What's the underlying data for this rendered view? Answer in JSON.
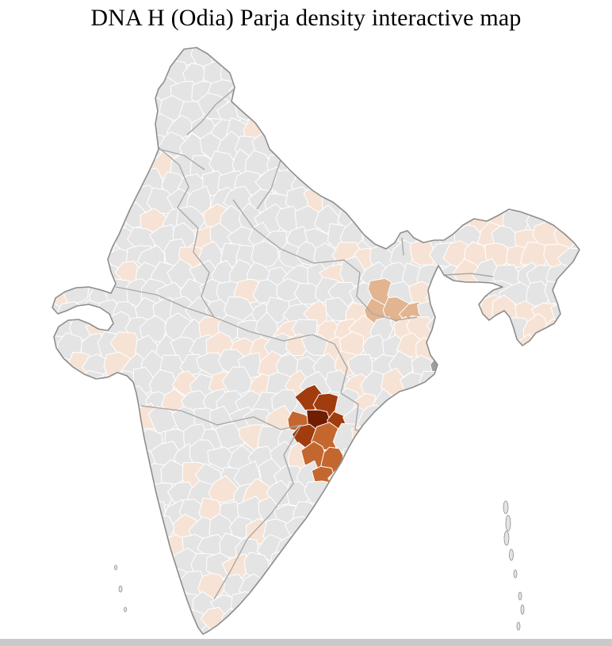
{
  "title": "DNA H (Odia) Parja density interactive map",
  "map": {
    "label": "India district-level density choropleth",
    "colors": {
      "land": "#e4e4e4",
      "district_border": "#ffffff",
      "state_border": "#a9a9a9",
      "outline": "#8d8d8d",
      "water": "#ffffff",
      "density_low": "#f7e3d5",
      "density_mid_light": "#e2b48f",
      "density_mid": "#c4672f",
      "density_high": "#a03c0d",
      "density_peak": "#701d03",
      "delta_shade": "#9e9e9e"
    }
  },
  "scrollbar": {
    "color": "#c9c9c9"
  }
}
